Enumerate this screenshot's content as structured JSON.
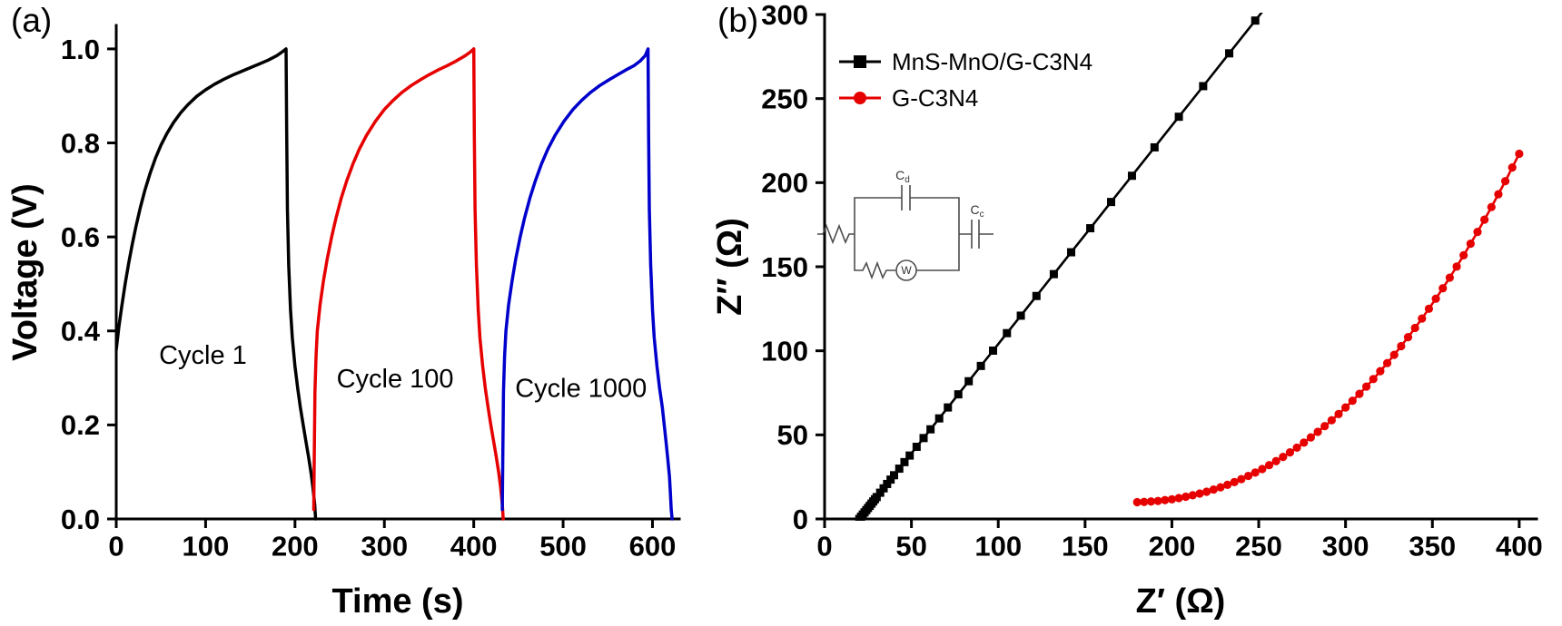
{
  "panel_labels": {
    "a": "(a)",
    "b": "(b)"
  },
  "chart_data": [
    {
      "type": "line",
      "title": "",
      "xlabel": "Time (s)",
      "ylabel": "Voltage (V)",
      "xlim": [
        0,
        630
      ],
      "ylim": [
        0,
        1.05
      ],
      "grid": false,
      "xticks": [
        0,
        100,
        200,
        300,
        400,
        500,
        600
      ],
      "xtick_labels": [
        "0",
        "100",
        "200",
        "300",
        "400",
        "500",
        "600"
      ],
      "yticks": [
        0,
        0.2,
        0.4,
        0.6,
        0.8,
        1.0
      ],
      "ytick_labels": [
        "0.0",
        "0.2",
        "0.4",
        "0.6",
        "0.8",
        "1.0"
      ],
      "legend_position": "none",
      "series": [
        {
          "name": "Cycle 1",
          "color": "#000000",
          "marker": "none",
          "points": [
            [
              0,
              0.36
            ],
            [
              3,
              0.41
            ],
            [
              6,
              0.45
            ],
            [
              10,
              0.5
            ],
            [
              14,
              0.545
            ],
            [
              18,
              0.585
            ],
            [
              22,
              0.622
            ],
            [
              27,
              0.663
            ],
            [
              32,
              0.699
            ],
            [
              38,
              0.736
            ],
            [
              44,
              0.768
            ],
            [
              50,
              0.795
            ],
            [
              57,
              0.821
            ],
            [
              64,
              0.843
            ],
            [
              72,
              0.864
            ],
            [
              80,
              0.881
            ],
            [
              90,
              0.899
            ],
            [
              100,
              0.913
            ],
            [
              110,
              0.925
            ],
            [
              120,
              0.935
            ],
            [
              130,
              0.944
            ],
            [
              140,
              0.952
            ],
            [
              150,
              0.96
            ],
            [
              160,
              0.968
            ],
            [
              170,
              0.976
            ],
            [
              180,
              0.986
            ],
            [
              186,
              0.994
            ],
            [
              190,
              1.0
            ],
            [
              190.7,
              0.82
            ],
            [
              191.5,
              0.66
            ],
            [
              193,
              0.54
            ],
            [
              195,
              0.445
            ],
            [
              197,
              0.385
            ],
            [
              200,
              0.325
            ],
            [
              203,
              0.278
            ],
            [
              206,
              0.238
            ],
            [
              209,
              0.202
            ],
            [
              212,
              0.168
            ],
            [
              215,
              0.134
            ],
            [
              218,
              0.098
            ],
            [
              220,
              0.068
            ],
            [
              222,
              0.032
            ],
            [
              223,
              0.0
            ]
          ]
        },
        {
          "name": "Cycle 100",
          "color": "#e60000",
          "marker": "none",
          "points": [
            [
              221,
              0.02
            ],
            [
              221.6,
              0.14
            ],
            [
              222.3,
              0.27
            ],
            [
              223.5,
              0.345
            ],
            [
              225,
              0.4
            ],
            [
              228,
              0.455
            ],
            [
              232,
              0.508
            ],
            [
              236,
              0.553
            ],
            [
              241,
              0.6
            ],
            [
              246,
              0.641
            ],
            [
              252,
              0.684
            ],
            [
              258,
              0.72
            ],
            [
              265,
              0.756
            ],
            [
              272,
              0.787
            ],
            [
              280,
              0.816
            ],
            [
              290,
              0.846
            ],
            [
              300,
              0.871
            ],
            [
              310,
              0.891
            ],
            [
              320,
              0.908
            ],
            [
              330,
              0.922
            ],
            [
              340,
              0.934
            ],
            [
              350,
              0.945
            ],
            [
              360,
              0.955
            ],
            [
              370,
              0.964
            ],
            [
              380,
              0.974
            ],
            [
              390,
              0.985
            ],
            [
              396,
              0.993
            ],
            [
              400,
              1.0
            ],
            [
              400.7,
              0.82
            ],
            [
              401.5,
              0.66
            ],
            [
              403,
              0.54
            ],
            [
              405,
              0.445
            ],
            [
              407,
              0.385
            ],
            [
              410,
              0.325
            ],
            [
              413,
              0.278
            ],
            [
              416,
              0.238
            ],
            [
              419,
              0.202
            ],
            [
              422,
              0.168
            ],
            [
              425,
              0.134
            ],
            [
              428,
              0.098
            ],
            [
              430,
              0.068
            ],
            [
              432,
              0.032
            ],
            [
              433,
              0.0
            ]
          ]
        },
        {
          "name": "Cycle 1000",
          "color": "#0000cc",
          "marker": "none",
          "points": [
            [
              432,
              0.02
            ],
            [
              432.6,
              0.14
            ],
            [
              433.3,
              0.27
            ],
            [
              434.5,
              0.345
            ],
            [
              436,
              0.4
            ],
            [
              439,
              0.455
            ],
            [
              443,
              0.508
            ],
            [
              447,
              0.553
            ],
            [
              452,
              0.6
            ],
            [
              457,
              0.641
            ],
            [
              463,
              0.684
            ],
            [
              469,
              0.72
            ],
            [
              476,
              0.756
            ],
            [
              483,
              0.787
            ],
            [
              491,
              0.816
            ],
            [
              501,
              0.846
            ],
            [
              511,
              0.871
            ],
            [
              521,
              0.891
            ],
            [
              531,
              0.908
            ],
            [
              541,
              0.922
            ],
            [
              551,
              0.934
            ],
            [
              561,
              0.945
            ],
            [
              570,
              0.955
            ],
            [
              579,
              0.964
            ],
            [
              586,
              0.974
            ],
            [
              592,
              0.986
            ],
            [
              595,
              1.0
            ],
            [
              595.7,
              0.82
            ],
            [
              596.5,
              0.66
            ],
            [
              598,
              0.54
            ],
            [
              600,
              0.445
            ],
            [
              602,
              0.385
            ],
            [
              605,
              0.325
            ],
            [
              608,
              0.278
            ],
            [
              611,
              0.238
            ],
            [
              613,
              0.202
            ],
            [
              615,
              0.168
            ],
            [
              617,
              0.13
            ],
            [
              619,
              0.09
            ],
            [
              620,
              0.055
            ],
            [
              621,
              0.02
            ],
            [
              622,
              0.0
            ]
          ]
        }
      ],
      "annotations": [
        {
          "text": "Cycle 1",
          "x": 97,
          "y": 0.33
        },
        {
          "text": "Cycle 100",
          "x": 312,
          "y": 0.28
        },
        {
          "text": "Cycle 1000",
          "x": 520,
          "y": 0.26
        }
      ]
    },
    {
      "type": "scatter",
      "title": "",
      "xlabel": "Z′ (Ω)",
      "ylabel": "Z″ (Ω)",
      "xlim": [
        0,
        410
      ],
      "ylim": [
        0,
        300
      ],
      "grid": false,
      "xticks": [
        0,
        50,
        100,
        150,
        200,
        250,
        300,
        350,
        400
      ],
      "xtick_labels": [
        "0",
        "50",
        "100",
        "150",
        "200",
        "250",
        "300",
        "350",
        "400"
      ],
      "yticks": [
        0,
        50,
        100,
        150,
        200,
        250,
        300
      ],
      "ytick_labels": [
        "0",
        "50",
        "100",
        "150",
        "200",
        "250",
        "300"
      ],
      "legend_position": "top-left",
      "series": [
        {
          "name": "MnS-MnO/G-C3N4",
          "color": "#000000",
          "marker": "square",
          "points": [
            [
              20,
              0
            ],
            [
              21,
              1.3
            ],
            [
              22,
              2.6
            ],
            [
              23,
              3.9
            ],
            [
              24,
              5.2
            ],
            [
              25,
              6.5
            ],
            [
              26,
              7.8
            ],
            [
              27,
              9.1
            ],
            [
              28,
              10.4
            ],
            [
              29,
              11.7
            ],
            [
              30,
              13
            ],
            [
              32,
              15.6
            ],
            [
              34,
              18.2
            ],
            [
              36,
              20.8
            ],
            [
              38,
              23.4
            ],
            [
              40,
              26
            ],
            [
              43,
              29.9
            ],
            [
              46,
              33.8
            ],
            [
              49,
              37.7
            ],
            [
              53,
              42.9
            ],
            [
              57,
              48.1
            ],
            [
              61,
              53.3
            ],
            [
              66,
              59.8
            ],
            [
              71,
              66.3
            ],
            [
              77,
              74.1
            ],
            [
              83,
              81.9
            ],
            [
              90,
              91
            ],
            [
              97,
              100.1
            ],
            [
              105,
              110.5
            ],
            [
              113,
              120.9
            ],
            [
              122,
              132.6
            ],
            [
              132,
              145.6
            ],
            [
              142,
              158.6
            ],
            [
              153,
              172.9
            ],
            [
              165,
              188.5
            ],
            [
              177,
              204.1
            ],
            [
              190,
              221
            ],
            [
              204,
              239.2
            ],
            [
              218,
              257.4
            ],
            [
              233,
              276.9
            ],
            [
              248,
              296.4
            ],
            [
              258,
              309.4
            ]
          ]
        },
        {
          "name": "G-C3N4",
          "color": "#e60000",
          "marker": "circle",
          "points": [
            [
              180,
              10
            ],
            [
              184,
              10.1
            ],
            [
              188,
              10.4
            ],
            [
              192,
              10.7
            ],
            [
              196,
              11.2
            ],
            [
              200,
              11.7
            ],
            [
              204,
              12.4
            ],
            [
              208,
              13.2
            ],
            [
              212,
              14.1
            ],
            [
              216,
              15.1
            ],
            [
              220,
              16.2
            ],
            [
              224,
              17.5
            ],
            [
              228,
              18.8
            ],
            [
              232,
              20.3
            ],
            [
              236,
              21.9
            ],
            [
              240,
              23.7
            ],
            [
              244,
              25.6
            ],
            [
              248,
              27.6
            ],
            [
              252,
              29.7
            ],
            [
              256,
              32.0
            ],
            [
              260,
              34.4
            ],
            [
              264,
              36.9
            ],
            [
              268,
              39.6
            ],
            [
              272,
              42.4
            ],
            [
              276,
              45.4
            ],
            [
              280,
              48.5
            ],
            [
              284,
              51.8
            ],
            [
              288,
              55.2
            ],
            [
              292,
              58.7
            ],
            [
              296,
              62.4
            ],
            [
              300,
              66.3
            ],
            [
              304,
              70.3
            ],
            [
              308,
              74.4
            ],
            [
              312,
              78.7
            ],
            [
              316,
              83.2
            ],
            [
              320,
              87.9
            ],
            [
              324,
              92.7
            ],
            [
              328,
              97.6
            ],
            [
              332,
              102.8
            ],
            [
              336,
              108.1
            ],
            [
              340,
              113.6
            ],
            [
              344,
              119.2
            ],
            [
              348,
              125.0
            ],
            [
              352,
              131.0
            ],
            [
              356,
              137.2
            ],
            [
              360,
              143.5
            ],
            [
              364,
              150.1
            ],
            [
              368,
              156.8
            ],
            [
              372,
              163.7
            ],
            [
              376,
              170.7
            ],
            [
              380,
              178.0
            ],
            [
              384,
              185.5
            ],
            [
              388,
              193.1
            ],
            [
              392,
              200.9
            ],
            [
              396,
              209.0
            ],
            [
              400,
              217.2
            ]
          ]
        }
      ],
      "annotations": []
    }
  ],
  "inset": {
    "description": "equivalent-circuit-model",
    "cap_top": "C",
    "cap_top_sub": "d",
    "cap_right": "C",
    "cap_right_sub": "c",
    "warburg": "W"
  }
}
